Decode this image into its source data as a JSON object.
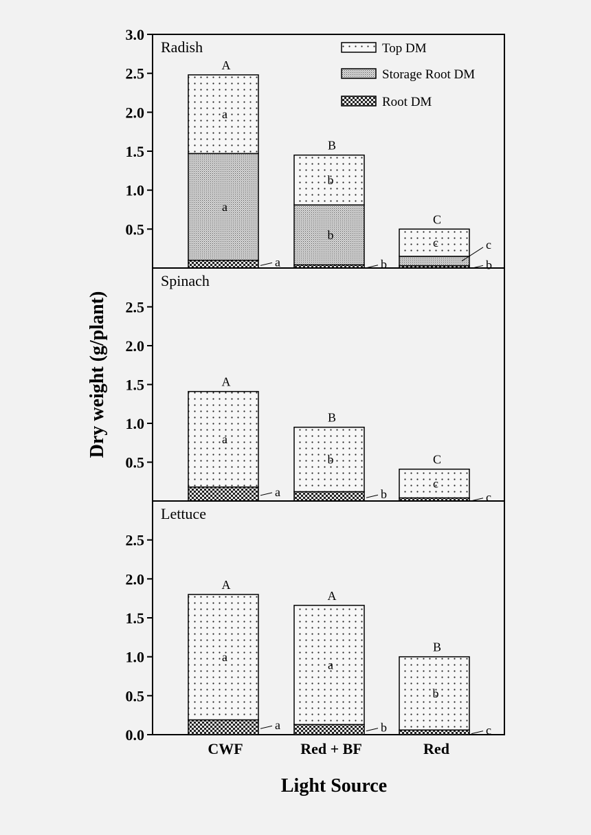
{
  "chart_data": {
    "type": "bar",
    "stacked": true,
    "ylabel": "Dry weight (g/plant)",
    "xlabel": "Light Source",
    "categories": [
      "CWF",
      "Red + BF",
      "Red"
    ],
    "legend": {
      "placement": "top-right",
      "entries": [
        "Top DM",
        "Storage Root DM",
        "Root DM"
      ]
    },
    "panels": [
      {
        "title": "Radish",
        "ylim": [
          0,
          3.0
        ],
        "yticks": [
          "0.5",
          "1.0",
          "1.5",
          "2.0",
          "2.5",
          "3.0"
        ],
        "series": [
          {
            "name": "Root DM",
            "values": [
              0.1,
              0.04,
              0.03
            ],
            "letters": [
              "a",
              "b",
              "b"
            ]
          },
          {
            "name": "Storage Root DM",
            "values": [
              1.37,
              0.77,
              0.12
            ],
            "letters": [
              "a",
              "b",
              "c"
            ]
          },
          {
            "name": "Top DM",
            "values": [
              1.01,
              0.64,
              0.35
            ],
            "letters": [
              "a",
              "b",
              "c"
            ]
          }
        ],
        "totals": [
          2.48,
          1.45,
          0.5
        ],
        "total_letters": [
          "A",
          "B",
          "C"
        ]
      },
      {
        "title": "Spinach",
        "ylim": [
          0,
          3.0
        ],
        "yticks": [
          "0.5",
          "1.0",
          "1.5",
          "2.0",
          "2.5"
        ],
        "series": [
          {
            "name": "Root DM",
            "values": [
              0.18,
              0.12,
              0.04
            ],
            "letters": [
              "a",
              "b",
              "c"
            ]
          },
          {
            "name": "Top DM",
            "values": [
              1.23,
              0.83,
              0.37
            ],
            "letters": [
              "a",
              "b",
              "c"
            ]
          }
        ],
        "totals": [
          1.41,
          0.95,
          0.41
        ],
        "total_letters": [
          "A",
          "B",
          "C"
        ]
      },
      {
        "title": "Lettuce",
        "ylim": [
          0,
          3.0
        ],
        "yticks": [
          "0.0",
          "0.5",
          "1.0",
          "1.5",
          "2.0",
          "2.5"
        ],
        "series": [
          {
            "name": "Root DM",
            "values": [
              0.19,
              0.13,
              0.06
            ],
            "letters": [
              "a",
              "b",
              "c"
            ]
          },
          {
            "name": "Top DM",
            "values": [
              1.61,
              1.53,
              0.94
            ],
            "letters": [
              "a",
              "a",
              "b"
            ]
          }
        ],
        "totals": [
          1.8,
          1.66,
          1.0
        ],
        "total_letters": [
          "A",
          "A",
          "B"
        ]
      }
    ]
  }
}
